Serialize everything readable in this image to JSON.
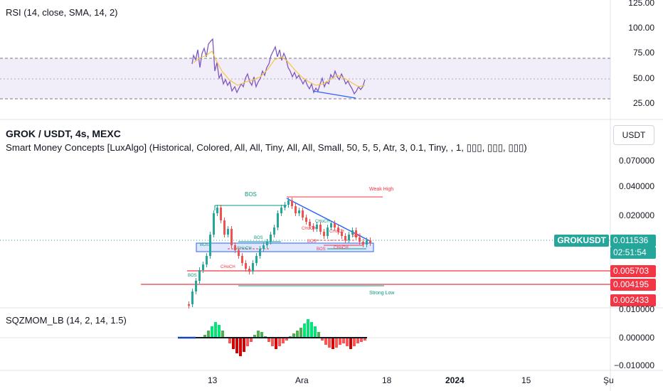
{
  "rsi_panel": {
    "title": "RSI (14, close, SMA, 14, 2)",
    "y_ticks": [
      "125.00",
      "100.00",
      "75.00",
      "50.00",
      "25.00"
    ]
  },
  "main_panel": {
    "symbol_title": "GROK / USDT, 4s, MEXC",
    "indicator_title": "Smart Money Concepts [LuxAlgo] (Historical, Colored, All, All, Tiny, All, All, Small, 50, 5, 5, Atr, 3, 0.1, Tiny, , 1, ▯▯▯, ▯▯▯, ▯▯▯)",
    "currency_button": "USDT",
    "y_ticks": [
      "0.070000",
      "0.040000",
      "0.020000"
    ],
    "symbol_badge": "GROKUSDT",
    "price_badge": "0.011536",
    "timer_badge": "02:51:54",
    "level_badges": [
      "0.005703",
      "0.004195",
      "0.002433"
    ],
    "annotations": {
      "weak_high": "Weak High",
      "strong_low": "Strong Low",
      "bos": "BOS",
      "choch": "CHoCH"
    },
    "colors": {
      "up": "#26a69a",
      "down": "#ef5350",
      "price_badge": "#26a69a",
      "level_badge": "#f23645",
      "trendline": "#2962ff"
    }
  },
  "sqz_panel": {
    "title": "SQZMOM_LB (14, 2, 14, 1.5)",
    "y_ticks": [
      "0.010000",
      "0.000000",
      "−0.010000"
    ]
  },
  "x_axis": {
    "labels": [
      "13",
      "Ara",
      "18",
      "2024",
      "15",
      "Şu"
    ]
  }
}
